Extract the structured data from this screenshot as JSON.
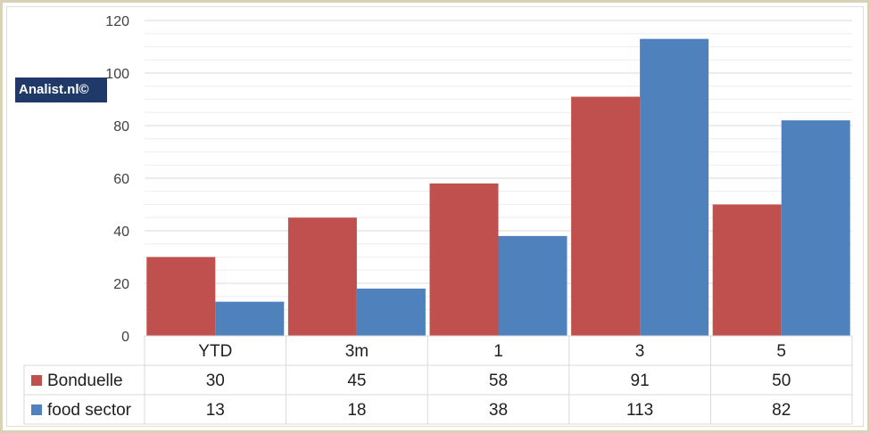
{
  "chart_data": {
    "type": "bar",
    "categories": [
      "YTD",
      "3m",
      "1",
      "3",
      "5"
    ],
    "series": [
      {
        "name": "Bonduelle",
        "values": [
          30,
          45,
          58,
          91,
          50
        ],
        "color": "#c0504d"
      },
      {
        "name": "food sector",
        "values": [
          13,
          18,
          38,
          113,
          82
        ],
        "color": "#4f81bd"
      }
    ],
    "ylim": [
      0,
      120
    ],
    "yticks": [
      0,
      20,
      40,
      60,
      80,
      100,
      120
    ],
    "grid": true,
    "legend": "data-table",
    "data_table": true
  },
  "badge": {
    "text": "Analist.nl©",
    "color": "#1f3a68"
  }
}
